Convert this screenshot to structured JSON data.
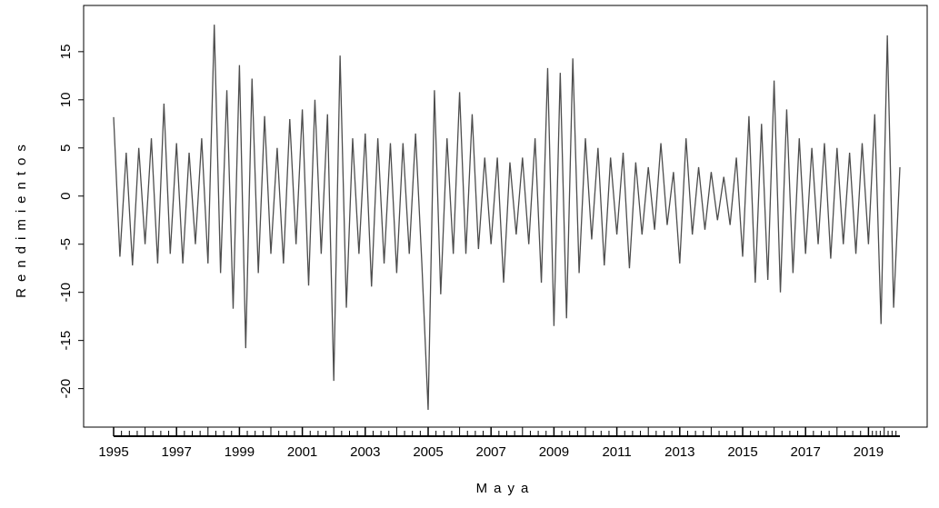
{
  "chart_data": {
    "type": "line",
    "xlabel": "Maya",
    "ylabel": "Rendimientos",
    "xlim": [
      1995,
      2020
    ],
    "ylim": [
      -24,
      19.8
    ],
    "xticks": [
      1995,
      1997,
      1999,
      2001,
      2003,
      2005,
      2007,
      2009,
      2011,
      2013,
      2015,
      2017,
      2019
    ],
    "yticks": [
      -20,
      -15,
      -10,
      -5,
      0,
      5,
      10,
      15
    ],
    "series": [
      {
        "color": "#4d4d4d",
        "x": [
          1995.0,
          1995.2,
          1995.4,
          1995.6,
          1995.8,
          1996.0,
          1996.2,
          1996.4,
          1996.6,
          1996.8,
          1997.0,
          1997.2,
          1997.4,
          1997.6,
          1997.8,
          1998.0,
          1998.2,
          1998.4,
          1998.6,
          1998.8,
          1999.0,
          1999.2,
          1999.4,
          1999.6,
          1999.8,
          2000.0,
          2000.2,
          2000.4,
          2000.6,
          2000.8,
          2001.0,
          2001.2,
          2001.4,
          2001.6,
          2001.8,
          2002.0,
          2002.2,
          2002.4,
          2002.6,
          2002.8,
          2003.0,
          2003.2,
          2003.4,
          2003.6,
          2003.8,
          2004.0,
          2004.2,
          2004.4,
          2004.6,
          2004.8,
          2005.0,
          2005.2,
          2005.4,
          2005.6,
          2005.8,
          2006.0,
          2006.2,
          2006.4,
          2006.6,
          2006.8,
          2007.0,
          2007.2,
          2007.4,
          2007.6,
          2007.8,
          2008.0,
          2008.2,
          2008.4,
          2008.6,
          2008.8,
          2009.0,
          2009.2,
          2009.4,
          2009.6,
          2009.8,
          2010.0,
          2010.2,
          2010.4,
          2010.6,
          2010.8,
          2011.0,
          2011.2,
          2011.4,
          2011.6,
          2011.8,
          2012.0,
          2012.2,
          2012.4,
          2012.6,
          2012.8,
          2013.0,
          2013.2,
          2013.4,
          2013.6,
          2013.8,
          2014.0,
          2014.2,
          2014.4,
          2014.6,
          2014.8,
          2015.0,
          2015.2,
          2015.4,
          2015.6,
          2015.8,
          2016.0,
          2016.2,
          2016.4,
          2016.6,
          2016.8,
          2017.0,
          2017.2,
          2017.4,
          2017.6,
          2017.8,
          2018.0,
          2018.2,
          2018.4,
          2018.6,
          2018.8,
          2019.0,
          2019.2,
          2019.4,
          2019.6,
          2019.8,
          2020.0
        ],
        "values": [
          8.2,
          -6.3,
          4.5,
          -7.2,
          5,
          -5,
          6,
          -7,
          9.6,
          -6,
          5.5,
          -7,
          4.5,
          -5,
          6,
          -7,
          17.8,
          -8,
          11,
          -11.7,
          13.6,
          -15.8,
          12.2,
          -8,
          8.3,
          -6,
          5,
          -7,
          8,
          -5,
          9,
          -9.3,
          10,
          -6,
          8.5,
          -19.2,
          14.6,
          -11.6,
          6,
          -6,
          6.5,
          -9.4,
          6,
          -7,
          5.5,
          -8,
          5.5,
          -6,
          6.5,
          -7,
          -22.2,
          11,
          -10.2,
          6,
          -6,
          10.8,
          -6,
          8.5,
          -5.5,
          4,
          -5,
          4,
          -9,
          3.5,
          -4,
          4,
          -5,
          6,
          -9,
          13.3,
          -13.5,
          12.8,
          -12.7,
          14.3,
          -8,
          6,
          -4.5,
          5,
          -7.2,
          4,
          -4,
          4.5,
          -7.5,
          3.5,
          -4,
          3,
          -3.5,
          5.5,
          -3,
          2.5,
          -7,
          6,
          -4,
          3,
          -3.5,
          2.5,
          -2.5,
          2,
          -3,
          4,
          -6.3,
          8.3,
          -9,
          7.5,
          -8.7,
          12,
          -10,
          9,
          -8,
          6,
          -6,
          5,
          -5,
          5.5,
          -6.5,
          5,
          -5,
          4.5,
          -6,
          5.5,
          -5,
          8.5,
          -13.3,
          16.7,
          -11.6,
          3
        ]
      }
    ]
  }
}
